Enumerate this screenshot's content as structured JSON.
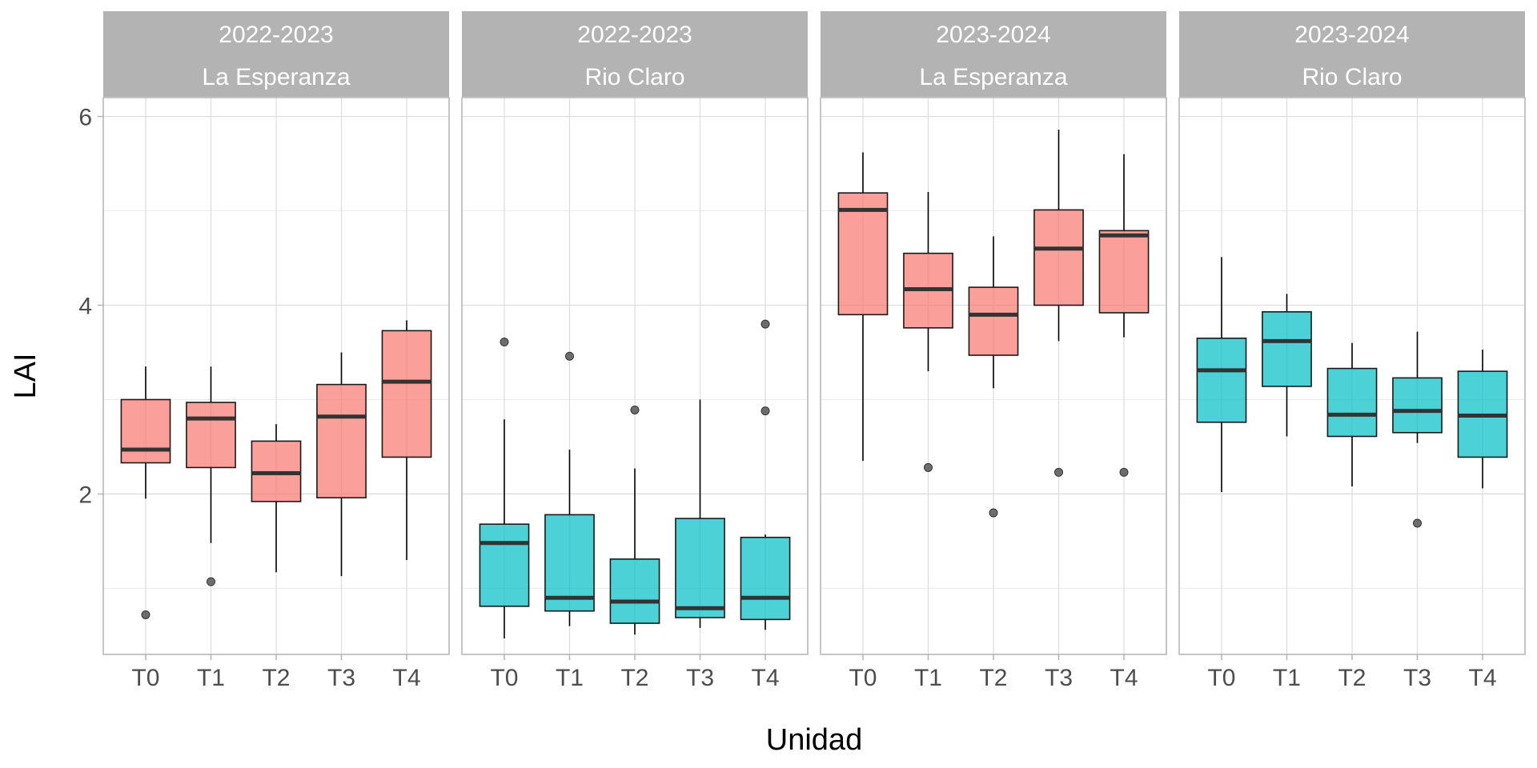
{
  "chart_data": {
    "type": "boxplot",
    "xlabel": "Unidad",
    "ylabel": "LAI",
    "categories": [
      "T0",
      "T1",
      "T2",
      "T3",
      "T4"
    ],
    "ylim": [
      0.3,
      6.2
    ],
    "yticks": [
      2,
      4,
      6
    ],
    "grid": true,
    "legend": "none",
    "colors": {
      "La Esperanza": "#f8766d",
      "Rio Claro": "#00bfc4"
    },
    "panels": [
      {
        "season": "2022-2023",
        "site": "La Esperanza",
        "boxes": [
          {
            "category": "T0",
            "min": 1.95,
            "q1": 2.33,
            "median": 2.47,
            "q3": 3.0,
            "max": 3.35,
            "outliers": [
              0.72
            ]
          },
          {
            "category": "T1",
            "min": 1.48,
            "q1": 2.28,
            "median": 2.8,
            "q3": 2.97,
            "max": 3.35,
            "outliers": [
              1.07
            ]
          },
          {
            "category": "T2",
            "min": 1.17,
            "q1": 1.92,
            "median": 2.22,
            "q3": 2.56,
            "max": 2.74,
            "outliers": []
          },
          {
            "category": "T3",
            "min": 1.13,
            "q1": 1.96,
            "median": 2.82,
            "q3": 3.16,
            "max": 3.5,
            "outliers": []
          },
          {
            "category": "T4",
            "min": 1.3,
            "q1": 2.39,
            "median": 3.19,
            "q3": 3.73,
            "max": 3.84,
            "outliers": []
          }
        ]
      },
      {
        "season": "2022-2023",
        "site": "Rio Claro",
        "boxes": [
          {
            "category": "T0",
            "min": 0.47,
            "q1": 0.81,
            "median": 1.48,
            "q3": 1.68,
            "max": 2.79,
            "outliers": [
              3.61
            ]
          },
          {
            "category": "T1",
            "min": 0.6,
            "q1": 0.76,
            "median": 0.9,
            "q3": 1.78,
            "max": 2.47,
            "outliers": [
              3.46
            ]
          },
          {
            "category": "T2",
            "min": 0.51,
            "q1": 0.63,
            "median": 0.86,
            "q3": 1.31,
            "max": 2.27,
            "outliers": [
              2.89
            ]
          },
          {
            "category": "T3",
            "min": 0.58,
            "q1": 0.69,
            "median": 0.79,
            "q3": 1.74,
            "max": 3.0,
            "outliers": []
          },
          {
            "category": "T4",
            "min": 0.56,
            "q1": 0.67,
            "median": 0.9,
            "q3": 1.54,
            "max": 1.57,
            "outliers": [
              2.88,
              3.8
            ]
          }
        ]
      },
      {
        "season": "2023-2024",
        "site": "La Esperanza",
        "boxes": [
          {
            "category": "T0",
            "min": 2.35,
            "q1": 3.9,
            "median": 5.01,
            "q3": 5.19,
            "max": 5.62,
            "outliers": []
          },
          {
            "category": "T1",
            "min": 3.3,
            "q1": 3.76,
            "median": 4.17,
            "q3": 4.55,
            "max": 5.2,
            "outliers": [
              2.28
            ]
          },
          {
            "category": "T2",
            "min": 3.12,
            "q1": 3.47,
            "median": 3.9,
            "q3": 4.19,
            "max": 4.73,
            "outliers": [
              1.8
            ]
          },
          {
            "category": "T3",
            "min": 3.62,
            "q1": 4.0,
            "median": 4.6,
            "q3": 5.01,
            "max": 5.86,
            "outliers": [
              2.23
            ]
          },
          {
            "category": "T4",
            "min": 3.66,
            "q1": 3.92,
            "median": 4.74,
            "q3": 4.79,
            "max": 5.6,
            "outliers": [
              2.23
            ]
          }
        ]
      },
      {
        "season": "2023-2024",
        "site": "Rio Claro",
        "boxes": [
          {
            "category": "T0",
            "min": 2.02,
            "q1": 2.76,
            "median": 3.31,
            "q3": 3.65,
            "max": 4.51,
            "outliers": []
          },
          {
            "category": "T1",
            "min": 2.61,
            "q1": 3.14,
            "median": 3.62,
            "q3": 3.93,
            "max": 4.12,
            "outliers": []
          },
          {
            "category": "T2",
            "min": 2.08,
            "q1": 2.61,
            "median": 2.84,
            "q3": 3.33,
            "max": 3.6,
            "outliers": []
          },
          {
            "category": "T3",
            "min": 2.54,
            "q1": 2.65,
            "median": 2.88,
            "q3": 3.23,
            "max": 3.72,
            "outliers": [
              1.69
            ]
          },
          {
            "category": "T4",
            "min": 2.06,
            "q1": 2.39,
            "median": 2.83,
            "q3": 3.3,
            "max": 3.53,
            "outliers": []
          }
        ]
      }
    ]
  }
}
